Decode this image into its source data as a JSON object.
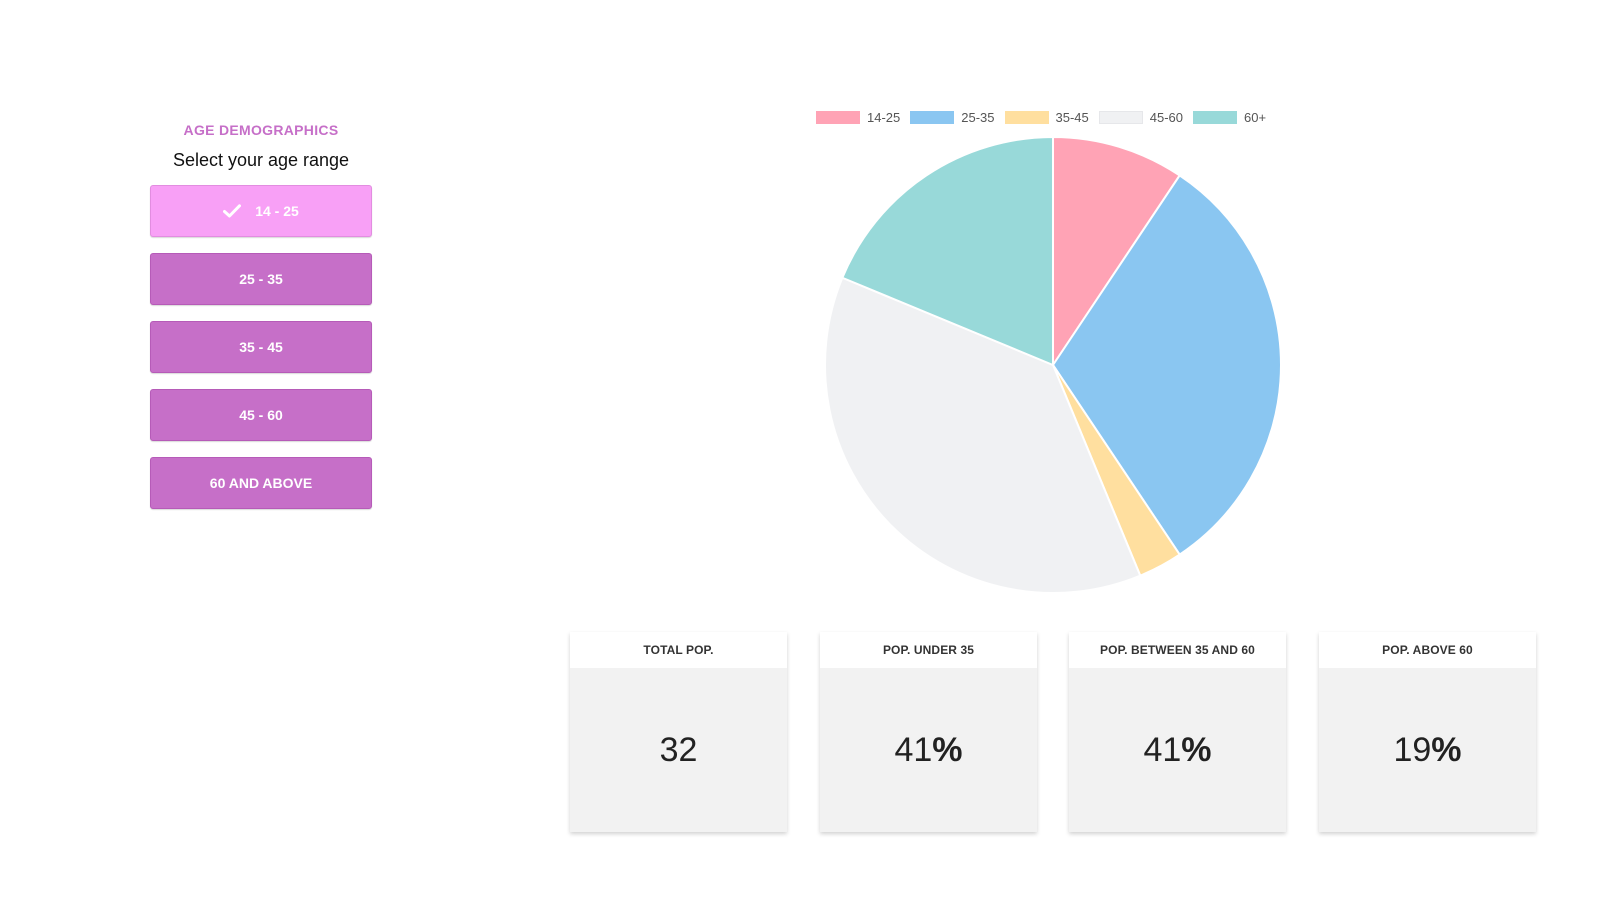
{
  "sidebar": {
    "title": "AGE DEMOGRAPHICS",
    "subtitle": "Select your age range",
    "buttons": [
      {
        "label": "14 - 25",
        "selected": true
      },
      {
        "label": "25 - 35",
        "selected": false
      },
      {
        "label": "35 - 45",
        "selected": false
      },
      {
        "label": "45 - 60",
        "selected": false
      },
      {
        "label": "60 AND ABOVE",
        "selected": false
      }
    ],
    "check_icon": "check-icon",
    "colors": {
      "button": "#c66fc8",
      "selected": "#f8a0f6",
      "title": "#c66fc8"
    }
  },
  "chart_data": {
    "type": "pie",
    "categories": [
      "14-25",
      "25-35",
      "35-45",
      "45-60",
      "60+"
    ],
    "values": [
      3,
      10,
      1,
      12,
      6
    ],
    "colors": [
      "#ffa3b5",
      "#8ac6f1",
      "#ffdf9f",
      "#f0f1f3",
      "#98d9d9"
    ],
    "legend": {
      "position": "top"
    }
  },
  "cards": [
    {
      "title": "TOTAL POP.",
      "value": "32",
      "suffix": ""
    },
    {
      "title": "POP. UNDER 35",
      "value": "41",
      "suffix": "%"
    },
    {
      "title": "POP. BETWEEN 35 AND 60",
      "value": "41",
      "suffix": "%"
    },
    {
      "title": "POP. ABOVE 60",
      "value": "19",
      "suffix": "%"
    }
  ]
}
